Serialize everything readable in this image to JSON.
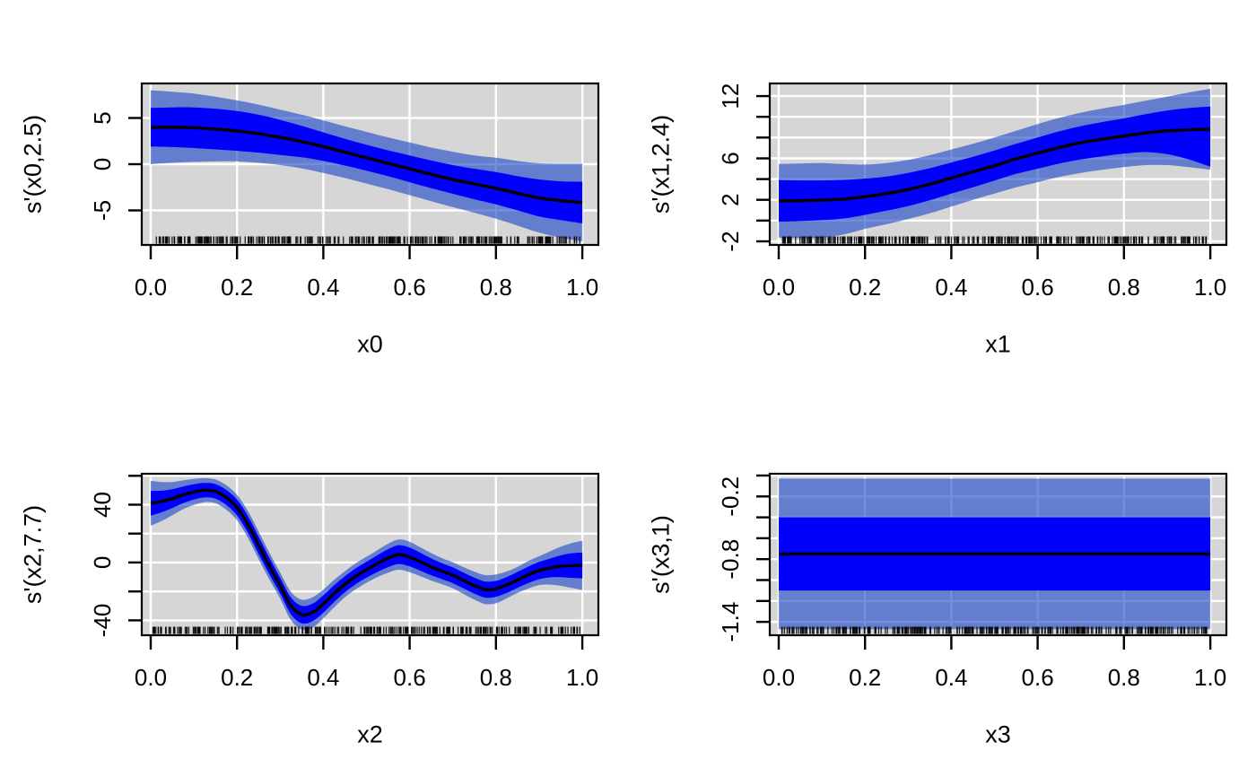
{
  "chart_data": {
    "type": "area",
    "layout": "2x2 grid of smooth-term derivative plots with confidence bands and data rug",
    "colors": {
      "background": "#ffffff",
      "panel_background": "#d6d6d6",
      "grid": "#ffffff",
      "outer_band": "#1e48c8",
      "outer_band_opacity": 0.62,
      "outer_band_apparent": "#6a84cd",
      "inner_band": "#0000fb",
      "fit_line": "#000000",
      "rug": "#000000",
      "text": "#000000"
    },
    "x_ticks": [
      {
        "value": 0.0,
        "label": "0.0"
      },
      {
        "value": 0.2,
        "label": "0.2"
      },
      {
        "value": 0.4,
        "label": "0.4"
      },
      {
        "value": 0.6,
        "label": "0.6"
      },
      {
        "value": 0.8,
        "label": "0.8"
      },
      {
        "value": 1.0,
        "label": "1.0"
      }
    ],
    "xlim": [
      -0.0207,
      1.0373
    ],
    "panels": [
      {
        "id": "x0",
        "xlabel": "x0",
        "ylabel": "s'(x0,2.5)",
        "ylim": [
          -8.74,
          8.74
        ],
        "y_ticks": [
          {
            "value": 5,
            "label": "5"
          },
          {
            "value": 0,
            "label": "0"
          },
          {
            "value": -5,
            "label": "-5"
          }
        ],
        "grid_y": [
          5,
          0,
          -5
        ],
        "series": {
          "x": [
            0,
            0.05,
            0.1,
            0.15,
            0.2,
            0.25,
            0.3,
            0.35,
            0.4,
            0.45,
            0.5,
            0.55,
            0.6,
            0.65,
            0.7,
            0.75,
            0.8,
            0.85,
            0.9,
            0.95,
            1
          ],
          "fit": [
            4,
            4,
            3.95,
            3.8,
            3.6,
            3.3,
            2.9,
            2.45,
            1.9,
            1.3,
            0.7,
            0.1,
            -0.5,
            -1.1,
            -1.65,
            -2.15,
            -2.6,
            -3.15,
            -3.65,
            -3.95,
            -4.15
          ],
          "inner_high": [
            6.1,
            6.15,
            6.15,
            6,
            5.75,
            5.35,
            4.8,
            4.15,
            3.45,
            2.75,
            2.1,
            1.5,
            0.95,
            0.4,
            -0.1,
            -0.5,
            -0.85,
            -1.3,
            -1.65,
            -1.85,
            -1.9
          ],
          "inner_low": [
            1.9,
            1.85,
            1.75,
            1.6,
            1.45,
            1.25,
            1,
            0.75,
            0.35,
            -0.15,
            -0.7,
            -1.3,
            -1.95,
            -2.6,
            -3.2,
            -3.8,
            -4.35,
            -5,
            -5.65,
            -6.05,
            -6.4
          ],
          "outer_high": [
            8,
            7.85,
            7.65,
            7.3,
            6.9,
            6.45,
            5.9,
            5.35,
            4.75,
            4.1,
            3.5,
            2.9,
            2.35,
            1.8,
            1.35,
            0.95,
            0.7,
            0.35,
            0.1,
            0.05,
            0.05
          ],
          "outer_low": [
            0,
            0.15,
            0.25,
            0.3,
            0.3,
            0.15,
            -0.1,
            -0.45,
            -0.95,
            -1.5,
            -2.1,
            -2.7,
            -3.35,
            -4,
            -4.65,
            -5.25,
            -5.9,
            -6.65,
            -7.4,
            -7.95,
            -8.35
          ]
        },
        "rug": {
          "count": 340,
          "seed": 17
        }
      },
      {
        "id": "x1",
        "xlabel": "x1",
        "ylabel": "s'(x1,2.4)",
        "ylim": [
          -2.35,
          13.22
        ],
        "y_ticks": [
          {
            "value": 12,
            "label": "12"
          },
          {
            "value": 10,
            "label": ""
          },
          {
            "value": 8,
            "label": ""
          },
          {
            "value": 6,
            "label": "6"
          },
          {
            "value": 4,
            "label": ""
          },
          {
            "value": 2,
            "label": "2"
          },
          {
            "value": 0,
            "label": ""
          },
          {
            "value": -2,
            "label": "-2"
          }
        ],
        "grid_y": [
          12,
          10,
          8,
          6,
          4,
          2,
          0,
          -2
        ],
        "series": {
          "x": [
            0,
            0.05,
            0.1,
            0.15,
            0.2,
            0.25,
            0.3,
            0.35,
            0.4,
            0.45,
            0.5,
            0.55,
            0.6,
            0.65,
            0.7,
            0.75,
            0.8,
            0.85,
            0.9,
            0.95,
            1
          ],
          "fit": [
            1.9,
            1.92,
            1.97,
            2.07,
            2.3,
            2.6,
            3,
            3.5,
            4.1,
            4.7,
            5.3,
            5.95,
            6.5,
            7.05,
            7.5,
            7.85,
            8.15,
            8.45,
            8.65,
            8.75,
            8.8
          ],
          "inner_high": [
            3.9,
            3.87,
            3.87,
            3.92,
            4.05,
            4.25,
            4.6,
            5.05,
            5.6,
            6.15,
            6.75,
            7.4,
            8,
            8.6,
            9.1,
            9.5,
            9.85,
            10.25,
            10.6,
            10.85,
            11
          ],
          "inner_low": [
            -0.1,
            -0.05,
            0.05,
            0.2,
            0.55,
            0.95,
            1.4,
            1.95,
            2.6,
            3.2,
            3.85,
            4.5,
            5,
            5.5,
            5.9,
            6.2,
            6.45,
            6.6,
            6.4,
            5.9,
            5.2
          ],
          "outer_high": [
            5.45,
            5.5,
            5.55,
            5.45,
            5.4,
            5.55,
            5.85,
            6.3,
            6.85,
            7.4,
            8,
            8.65,
            9.3,
            9.9,
            10.4,
            10.8,
            11.15,
            11.55,
            11.95,
            12.35,
            12.7
          ],
          "outer_low": [
            -1.65,
            -1.7,
            -1.65,
            -1.35,
            -0.8,
            -0.35,
            0.15,
            0.7,
            1.35,
            2,
            2.6,
            3.2,
            3.7,
            4.2,
            4.6,
            4.9,
            5.15,
            5.35,
            5.35,
            5.15,
            4.9
          ]
        },
        "rug": {
          "count": 340,
          "seed": 23
        }
      },
      {
        "id": "x2",
        "xlabel": "x2",
        "ylabel": "s'(x2,7.7)",
        "ylim": [
          -50.3,
          61.4
        ],
        "y_ticks": [
          {
            "value": 60,
            "label": ""
          },
          {
            "value": 40,
            "label": "40"
          },
          {
            "value": 20,
            "label": ""
          },
          {
            "value": 0,
            "label": "0"
          },
          {
            "value": -20,
            "label": ""
          },
          {
            "value": -40,
            "label": "-40"
          }
        ],
        "grid_y": [
          60,
          40,
          20,
          0,
          -20,
          -40
        ],
        "series": {
          "x": [
            0,
            0.025,
            0.05,
            0.075,
            0.1,
            0.125,
            0.15,
            0.175,
            0.2,
            0.225,
            0.25,
            0.275,
            0.3,
            0.325,
            0.35,
            0.375,
            0.4,
            0.425,
            0.45,
            0.475,
            0.5,
            0.525,
            0.55,
            0.575,
            0.6,
            0.625,
            0.65,
            0.675,
            0.7,
            0.725,
            0.75,
            0.775,
            0.8,
            0.825,
            0.85,
            0.875,
            0.9,
            0.925,
            0.95,
            0.975,
            1
          ],
          "fit": [
            41,
            42.2,
            44.2,
            46.8,
            48.8,
            50,
            49.2,
            45,
            38,
            26.5,
            12,
            -2.5,
            -16,
            -30,
            -36,
            -34.5,
            -28.7,
            -21.5,
            -15,
            -9.5,
            -5,
            -0.8,
            3,
            5.5,
            3.8,
            0.5,
            -3,
            -6,
            -8.8,
            -12.5,
            -16,
            -18.7,
            -18.2,
            -15.5,
            -12,
            -8.5,
            -5.6,
            -3.8,
            -2.6,
            -2.1,
            -2
          ],
          "inner_high": [
            49.5,
            49.7,
            50.7,
            52.6,
            54.1,
            55,
            54.2,
            50.2,
            43.5,
            32.3,
            18,
            3.3,
            -10.5,
            -24.2,
            -30,
            -28.5,
            -22.7,
            -15.7,
            -9.5,
            -4,
            0.5,
            5,
            9.2,
            12,
            10.3,
            6.7,
            2.8,
            -0.5,
            -3.3,
            -7,
            -10.5,
            -13.1,
            -12.7,
            -10,
            -6.5,
            -2.8,
            0.4,
            2.7,
            4.9,
            6.4,
            7
          ],
          "inner_low": [
            32.5,
            34.7,
            37.7,
            41,
            43.5,
            45,
            44.2,
            39.8,
            32.5,
            20.7,
            6,
            -8.3,
            -21.5,
            -35.8,
            -42,
            -40.5,
            -34.7,
            -27.3,
            -20.5,
            -15,
            -10.5,
            -6.6,
            -3.2,
            -1,
            -2.7,
            -5.7,
            -8.8,
            -11.5,
            -14.3,
            -18,
            -21.5,
            -24.3,
            -23.7,
            -21,
            -17.5,
            -14.2,
            -11.6,
            -10.3,
            -10.1,
            -10.6,
            -11
          ],
          "outer_high": [
            56.5,
            55.7,
            55.7,
            56.8,
            57.8,
            58.3,
            57.4,
            53.5,
            46.8,
            35.8,
            21.5,
            6.8,
            -7,
            -20.2,
            -25.7,
            -24,
            -18.7,
            -12,
            -6,
            -0.5,
            4,
            8.5,
            13,
            16,
            14.3,
            10.5,
            6.5,
            3,
            0.2,
            -3.2,
            -6.3,
            -8.7,
            -8.2,
            -6.2,
            -3,
            1,
            4.4,
            7.7,
            10.9,
            13.4,
            15
          ],
          "outer_low": [
            25.5,
            28.7,
            32.7,
            36.8,
            39.8,
            41.7,
            41,
            36.5,
            29.2,
            17.2,
            2.5,
            -11.8,
            -25,
            -39.8,
            -46.3,
            -45,
            -38.7,
            -31,
            -24,
            -18.5,
            -14,
            -10.1,
            -7,
            -5,
            -6.7,
            -9.5,
            -12.5,
            -15,
            -17.8,
            -21.8,
            -25.7,
            -28.7,
            -28.2,
            -24.8,
            -21,
            -18,
            -15.6,
            -15.3,
            -16.1,
            -17.6,
            -19
          ]
        },
        "rug": {
          "count": 330,
          "seed": 5
        }
      },
      {
        "id": "x3",
        "xlabel": "x3",
        "ylabel": "s'(x3,1)",
        "ylim": [
          -1.528,
          0.017
        ],
        "y_ticks": [
          {
            "value": 0,
            "label": ""
          },
          {
            "value": -0.2,
            "label": "-0.2"
          },
          {
            "value": -0.4,
            "label": ""
          },
          {
            "value": -0.6,
            "label": ""
          },
          {
            "value": -0.8,
            "label": "-0.8"
          },
          {
            "value": -1.0,
            "label": ""
          },
          {
            "value": -1.2,
            "label": ""
          },
          {
            "value": -1.4,
            "label": "-1.4"
          }
        ],
        "grid_y": [
          0,
          -0.2,
          -0.4,
          -0.6,
          -0.8,
          -1.0,
          -1.2,
          -1.4
        ],
        "series": {
          "x": [
            0,
            1
          ],
          "fit": [
            -0.75,
            -0.75
          ],
          "inner_high": [
            -0.4,
            -0.4
          ],
          "inner_low": [
            -1.1,
            -1.1
          ],
          "outer_high": [
            -0.03,
            -0.03
          ],
          "outer_low": [
            -1.47,
            -1.47
          ]
        },
        "rug": {
          "count": 330,
          "seed": 42
        }
      }
    ]
  }
}
